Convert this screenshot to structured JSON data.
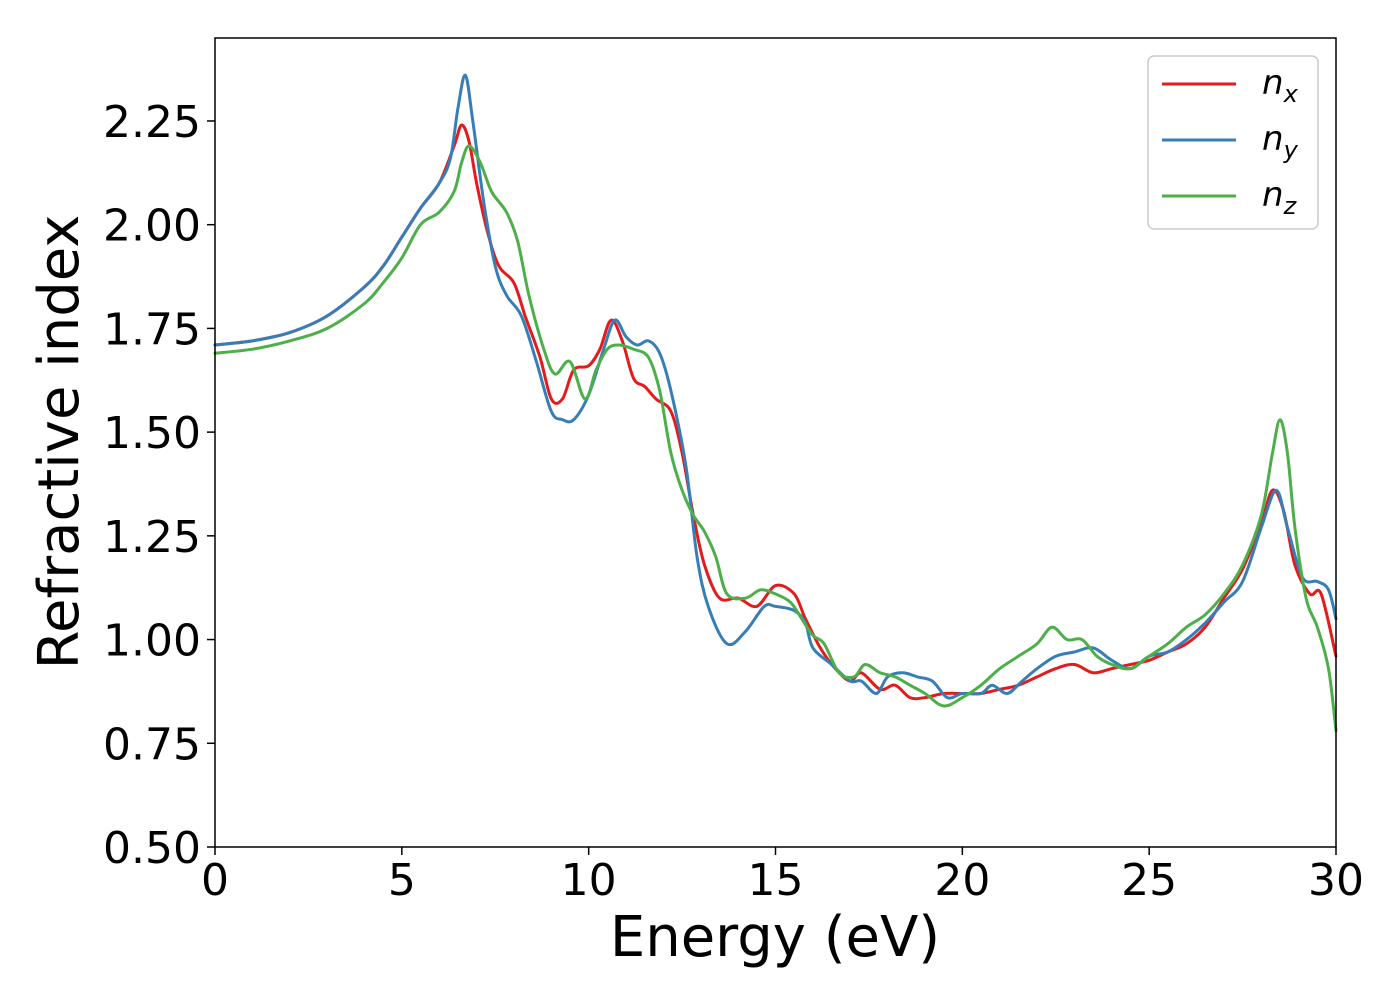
{
  "chart_data": {
    "type": "line",
    "title": "",
    "xlabel": "Energy (eV)",
    "ylabel": "Refractive index",
    "xlim": [
      0,
      30
    ],
    "ylim": [
      0.5,
      2.45
    ],
    "xticks": [
      0,
      5,
      10,
      15,
      20,
      25,
      30
    ],
    "xtick_labels": [
      "0",
      "5",
      "10",
      "15",
      "20",
      "25",
      "30"
    ],
    "yticks": [
      0.5,
      0.75,
      1.0,
      1.25,
      1.5,
      1.75,
      2.0,
      2.25
    ],
    "ytick_labels": [
      "0.50",
      "0.75",
      "1.00",
      "1.25",
      "1.50",
      "1.75",
      "2.00",
      "2.25"
    ],
    "grid": false,
    "legend_position": "top-right",
    "series": [
      {
        "name": "n",
        "subscript": "x",
        "color": "#e41a1c",
        "points": [
          [
            0,
            1.71
          ],
          [
            1,
            1.72
          ],
          [
            2,
            1.74
          ],
          [
            3,
            1.78
          ],
          [
            4,
            1.85
          ],
          [
            4.5,
            1.9
          ],
          [
            5,
            1.97
          ],
          [
            5.5,
            2.04
          ],
          [
            6,
            2.1
          ],
          [
            6.4,
            2.19
          ],
          [
            6.6,
            2.24
          ],
          [
            6.8,
            2.2
          ],
          [
            7,
            2.1
          ],
          [
            7.3,
            1.98
          ],
          [
            7.6,
            1.9
          ],
          [
            8,
            1.86
          ],
          [
            8.3,
            1.78
          ],
          [
            8.7,
            1.68
          ],
          [
            9,
            1.58
          ],
          [
            9.3,
            1.58
          ],
          [
            9.6,
            1.65
          ],
          [
            10,
            1.66
          ],
          [
            10.3,
            1.7
          ],
          [
            10.6,
            1.77
          ],
          [
            10.9,
            1.72
          ],
          [
            11.2,
            1.63
          ],
          [
            11.5,
            1.61
          ],
          [
            11.8,
            1.58
          ],
          [
            12.2,
            1.55
          ],
          [
            12.5,
            1.45
          ],
          [
            12.8,
            1.3
          ],
          [
            13.1,
            1.18
          ],
          [
            13.5,
            1.1
          ],
          [
            14,
            1.1
          ],
          [
            14.5,
            1.08
          ],
          [
            15,
            1.13
          ],
          [
            15.5,
            1.11
          ],
          [
            15.8,
            1.05
          ],
          [
            16.2,
            0.98
          ],
          [
            16.6,
            0.93
          ],
          [
            17,
            0.9
          ],
          [
            17.3,
            0.92
          ],
          [
            17.8,
            0.88
          ],
          [
            18.2,
            0.89
          ],
          [
            18.6,
            0.86
          ],
          [
            19,
            0.86
          ],
          [
            19.5,
            0.87
          ],
          [
            20,
            0.87
          ],
          [
            20.5,
            0.87
          ],
          [
            21,
            0.88
          ],
          [
            21.5,
            0.89
          ],
          [
            22,
            0.91
          ],
          [
            22.5,
            0.93
          ],
          [
            23,
            0.94
          ],
          [
            23.5,
            0.92
          ],
          [
            24,
            0.93
          ],
          [
            24.5,
            0.94
          ],
          [
            25,
            0.95
          ],
          [
            25.5,
            0.97
          ],
          [
            26,
            0.99
          ],
          [
            26.5,
            1.03
          ],
          [
            27,
            1.1
          ],
          [
            27.5,
            1.17
          ],
          [
            28,
            1.28
          ],
          [
            28.3,
            1.36
          ],
          [
            28.6,
            1.31
          ],
          [
            28.9,
            1.18
          ],
          [
            29.3,
            1.11
          ],
          [
            29.6,
            1.11
          ],
          [
            30,
            0.96
          ]
        ]
      },
      {
        "name": "n",
        "subscript": "y",
        "color": "#377eb8",
        "points": [
          [
            0,
            1.71
          ],
          [
            1,
            1.72
          ],
          [
            2,
            1.74
          ],
          [
            3,
            1.78
          ],
          [
            4,
            1.85
          ],
          [
            4.5,
            1.9
          ],
          [
            5,
            1.97
          ],
          [
            5.5,
            2.04
          ],
          [
            6,
            2.1
          ],
          [
            6.3,
            2.16
          ],
          [
            6.5,
            2.28
          ],
          [
            6.7,
            2.36
          ],
          [
            6.9,
            2.25
          ],
          [
            7.2,
            2.05
          ],
          [
            7.5,
            1.9
          ],
          [
            7.8,
            1.83
          ],
          [
            8.2,
            1.78
          ],
          [
            8.6,
            1.67
          ],
          [
            9,
            1.55
          ],
          [
            9.3,
            1.53
          ],
          [
            9.6,
            1.53
          ],
          [
            10,
            1.59
          ],
          [
            10.4,
            1.7
          ],
          [
            10.7,
            1.77
          ],
          [
            11,
            1.73
          ],
          [
            11.3,
            1.71
          ],
          [
            11.6,
            1.72
          ],
          [
            11.9,
            1.69
          ],
          [
            12.2,
            1.6
          ],
          [
            12.6,
            1.42
          ],
          [
            12.9,
            1.2
          ],
          [
            13.2,
            1.08
          ],
          [
            13.7,
            0.99
          ],
          [
            14.2,
            1.02
          ],
          [
            14.7,
            1.08
          ],
          [
            15,
            1.08
          ],
          [
            15.5,
            1.07
          ],
          [
            15.8,
            1.04
          ],
          [
            16,
            0.98
          ],
          [
            16.5,
            0.94
          ],
          [
            17,
            0.9
          ],
          [
            17.3,
            0.9
          ],
          [
            17.7,
            0.87
          ],
          [
            18,
            0.91
          ],
          [
            18.4,
            0.92
          ],
          [
            18.8,
            0.91
          ],
          [
            19.2,
            0.9
          ],
          [
            19.6,
            0.86
          ],
          [
            20,
            0.87
          ],
          [
            20.5,
            0.87
          ],
          [
            20.8,
            0.89
          ],
          [
            21.2,
            0.87
          ],
          [
            21.6,
            0.9
          ],
          [
            22,
            0.93
          ],
          [
            22.5,
            0.96
          ],
          [
            23,
            0.97
          ],
          [
            23.5,
            0.98
          ],
          [
            24,
            0.95
          ],
          [
            24.5,
            0.93
          ],
          [
            25,
            0.96
          ],
          [
            25.5,
            0.97
          ],
          [
            26,
            1.0
          ],
          [
            26.5,
            1.04
          ],
          [
            27,
            1.09
          ],
          [
            27.5,
            1.14
          ],
          [
            28,
            1.27
          ],
          [
            28.4,
            1.36
          ],
          [
            28.7,
            1.27
          ],
          [
            29.1,
            1.15
          ],
          [
            29.5,
            1.14
          ],
          [
            29.8,
            1.12
          ],
          [
            30,
            1.05
          ]
        ]
      },
      {
        "name": "n",
        "subscript": "z",
        "color": "#4daf4a",
        "points": [
          [
            0,
            1.69
          ],
          [
            1,
            1.7
          ],
          [
            2,
            1.72
          ],
          [
            3,
            1.75
          ],
          [
            4,
            1.81
          ],
          [
            4.5,
            1.86
          ],
          [
            5,
            1.92
          ],
          [
            5.5,
            2.0
          ],
          [
            6,
            2.03
          ],
          [
            6.4,
            2.08
          ],
          [
            6.6,
            2.15
          ],
          [
            6.8,
            2.19
          ],
          [
            7.1,
            2.15
          ],
          [
            7.4,
            2.08
          ],
          [
            7.8,
            2.03
          ],
          [
            8.1,
            1.96
          ],
          [
            8.4,
            1.83
          ],
          [
            8.8,
            1.7
          ],
          [
            9.1,
            1.64
          ],
          [
            9.5,
            1.67
          ],
          [
            9.9,
            1.58
          ],
          [
            10.2,
            1.65
          ],
          [
            10.5,
            1.7
          ],
          [
            10.8,
            1.71
          ],
          [
            11.2,
            1.7
          ],
          [
            11.6,
            1.68
          ],
          [
            11.9,
            1.6
          ],
          [
            12.2,
            1.45
          ],
          [
            12.5,
            1.36
          ],
          [
            12.8,
            1.3
          ],
          [
            13.1,
            1.26
          ],
          [
            13.4,
            1.2
          ],
          [
            13.7,
            1.11
          ],
          [
            14.2,
            1.1
          ],
          [
            14.6,
            1.12
          ],
          [
            15,
            1.11
          ],
          [
            15.4,
            1.09
          ],
          [
            15.7,
            1.05
          ],
          [
            16,
            1.01
          ],
          [
            16.3,
            0.99
          ],
          [
            16.7,
            0.92
          ],
          [
            17.1,
            0.91
          ],
          [
            17.4,
            0.94
          ],
          [
            17.8,
            0.92
          ],
          [
            18.2,
            0.91
          ],
          [
            18.6,
            0.89
          ],
          [
            19,
            0.87
          ],
          [
            19.5,
            0.84
          ],
          [
            20,
            0.86
          ],
          [
            20.5,
            0.89
          ],
          [
            21,
            0.93
          ],
          [
            21.5,
            0.96
          ],
          [
            22,
            0.99
          ],
          [
            22.4,
            1.03
          ],
          [
            22.8,
            1.0
          ],
          [
            23.2,
            1.0
          ],
          [
            23.6,
            0.96
          ],
          [
            24,
            0.94
          ],
          [
            24.5,
            0.93
          ],
          [
            25,
            0.96
          ],
          [
            25.5,
            0.99
          ],
          [
            26,
            1.03
          ],
          [
            26.5,
            1.06
          ],
          [
            27,
            1.11
          ],
          [
            27.5,
            1.18
          ],
          [
            28,
            1.3
          ],
          [
            28.3,
            1.45
          ],
          [
            28.5,
            1.53
          ],
          [
            28.7,
            1.45
          ],
          [
            28.9,
            1.27
          ],
          [
            29.2,
            1.1
          ],
          [
            29.5,
            1.03
          ],
          [
            29.8,
            0.93
          ],
          [
            30,
            0.78
          ]
        ]
      }
    ]
  }
}
